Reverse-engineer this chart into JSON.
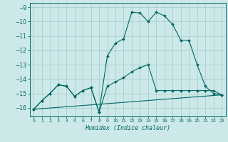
{
  "xlabel": "Humidex (Indice chaleur)",
  "background_color": "#cce8e8",
  "grid_color": "#aacfcf",
  "line_color": "#006666",
  "xlim": [
    -0.5,
    23.5
  ],
  "ylim": [
    -16.6,
    -8.7
  ],
  "yticks": [
    -16,
    -15,
    -14,
    -13,
    -12,
    -11,
    -10,
    -9
  ],
  "xticks": [
    0,
    1,
    2,
    3,
    4,
    5,
    6,
    7,
    8,
    9,
    10,
    11,
    12,
    13,
    14,
    15,
    16,
    17,
    18,
    19,
    20,
    21,
    22,
    23
  ],
  "series1_x": [
    0,
    1,
    2,
    3,
    4,
    5,
    6,
    7,
    8,
    9,
    10,
    11,
    12,
    13,
    14,
    15,
    16,
    17,
    18,
    19,
    20,
    21,
    22,
    23
  ],
  "series1_y": [
    -16.1,
    -15.5,
    -15.0,
    -14.4,
    -14.5,
    -15.2,
    -14.8,
    -14.6,
    -16.3,
    -12.4,
    -11.5,
    -11.2,
    -9.35,
    -9.4,
    -10.0,
    -9.35,
    -9.6,
    -10.2,
    -11.3,
    -11.3,
    -13.0,
    -14.5,
    -15.0,
    -15.1
  ],
  "series2_x": [
    0,
    1,
    2,
    3,
    4,
    5,
    6,
    7,
    8,
    9,
    10,
    11,
    12,
    13,
    14,
    15,
    16,
    17,
    18,
    19,
    20,
    21,
    22,
    23
  ],
  "series2_y": [
    -16.1,
    -15.5,
    -15.0,
    -14.4,
    -14.5,
    -15.2,
    -14.8,
    -14.6,
    -16.3,
    -14.5,
    -14.2,
    -13.9,
    -13.5,
    -13.2,
    -13.0,
    -14.8,
    -14.8,
    -14.8,
    -14.8,
    -14.8,
    -14.8,
    -14.8,
    -14.8,
    -15.1
  ],
  "series3_x": [
    0,
    23
  ],
  "series3_y": [
    -16.1,
    -15.1
  ]
}
